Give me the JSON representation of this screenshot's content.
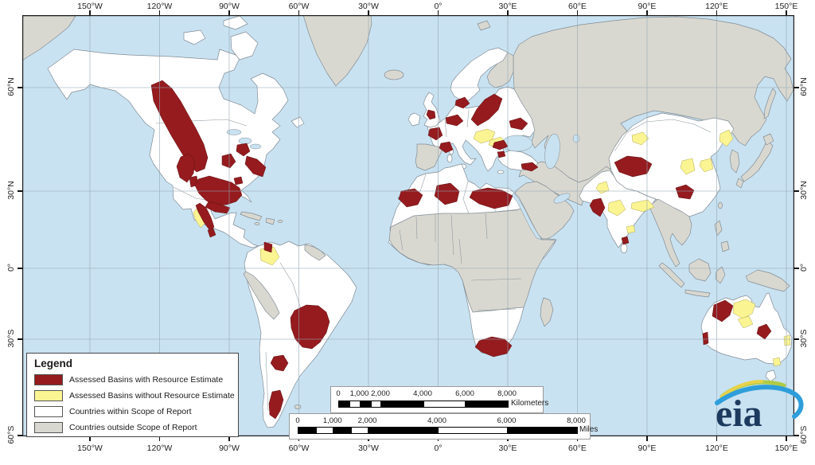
{
  "colors": {
    "ocean": "#C9E2F1",
    "land-white": "#FFFFFF",
    "land-gray": "#D9D8D0",
    "basin-red": "#951B1E",
    "basin-yellow": "#FAF493",
    "border": "#808C95",
    "graticule": "#93A7B4",
    "frame": "#1A1A1A",
    "logo-navy": "#1D3A5F",
    "logo-green": "#AFCB44",
    "logo-blue": "#2E9EDB"
  },
  "axes": {
    "lon_labels": [
      "150°W",
      "120°W",
      "90°W",
      "60°W",
      "30°W",
      "0°",
      "30°E",
      "60°E",
      "90°E",
      "120°E",
      "150°E"
    ],
    "lat_labels": [
      "60°N",
      "30°N",
      "0°",
      "30°S",
      "60°S"
    ]
  },
  "legend": {
    "title": "Legend",
    "items": [
      {
        "label": "Assessed Basins with Resource Estimate",
        "color": "basin-red"
      },
      {
        "label": "Assessed Basins without Resource Estimate",
        "color": "basin-yellow"
      },
      {
        "label": "Countries within Scope of Report",
        "color": "land-white"
      },
      {
        "label": "Countries outside Scope of Report",
        "color": "land-gray"
      }
    ]
  },
  "scale_bars": {
    "kilometers": {
      "labels": [
        "0",
        "1,000",
        "2,000",
        "4,000",
        "6,000",
        "8,000"
      ],
      "unit": "Kilometers"
    },
    "miles": {
      "labels": [
        "0",
        "1,000",
        "2,000",
        "4,000",
        "6,000",
        "8,000"
      ],
      "unit": "Miles"
    }
  },
  "logo": {
    "text": "eia"
  }
}
